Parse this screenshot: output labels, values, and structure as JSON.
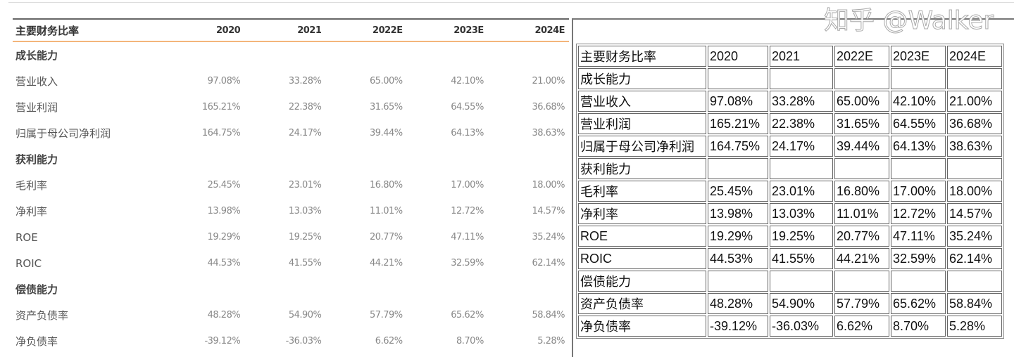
{
  "header": [
    "主要财务比率",
    "2020",
    "2021",
    "2022E",
    "2023E",
    "2024E"
  ],
  "rows": [
    {
      "label": "成长能力",
      "section": true,
      "values": [
        "",
        "",
        "",
        "",
        ""
      ]
    },
    {
      "label": "营业收入",
      "values": [
        "97.08%",
        "33.28%",
        "65.00%",
        "42.10%",
        "21.00%"
      ]
    },
    {
      "label": "营业利润",
      "values": [
        "165.21%",
        "22.38%",
        "31.65%",
        "64.55%",
        "36.68%"
      ]
    },
    {
      "label": "归属于母公司净利润",
      "values": [
        "164.75%",
        "24.17%",
        "39.44%",
        "64.13%",
        "38.63%"
      ]
    },
    {
      "label": "获利能力",
      "section": true,
      "values": [
        "",
        "",
        "",
        "",
        ""
      ]
    },
    {
      "label": "毛利率",
      "values": [
        "25.45%",
        "23.01%",
        "16.80%",
        "17.00%",
        "18.00%"
      ]
    },
    {
      "label": "净利率",
      "values": [
        "13.98%",
        "13.03%",
        "11.01%",
        "12.72%",
        "14.57%"
      ]
    },
    {
      "label": "ROE",
      "values": [
        "19.29%",
        "19.25%",
        "20.77%",
        "47.11%",
        "35.24%"
      ]
    },
    {
      "label": "ROIC",
      "values": [
        "44.53%",
        "41.55%",
        "44.21%",
        "32.59%",
        "62.14%"
      ]
    },
    {
      "label": "偿债能力",
      "section": true,
      "values": [
        "",
        "",
        "",
        "",
        ""
      ]
    },
    {
      "label": "资产负债率",
      "values": [
        "48.28%",
        "54.90%",
        "57.79%",
        "65.62%",
        "58.84%"
      ]
    },
    {
      "label": "净负债率",
      "values": [
        "-39.12%",
        "-36.03%",
        "6.62%",
        "8.70%",
        "5.28%"
      ]
    }
  ],
  "watermark": "知乎 @Walker"
}
